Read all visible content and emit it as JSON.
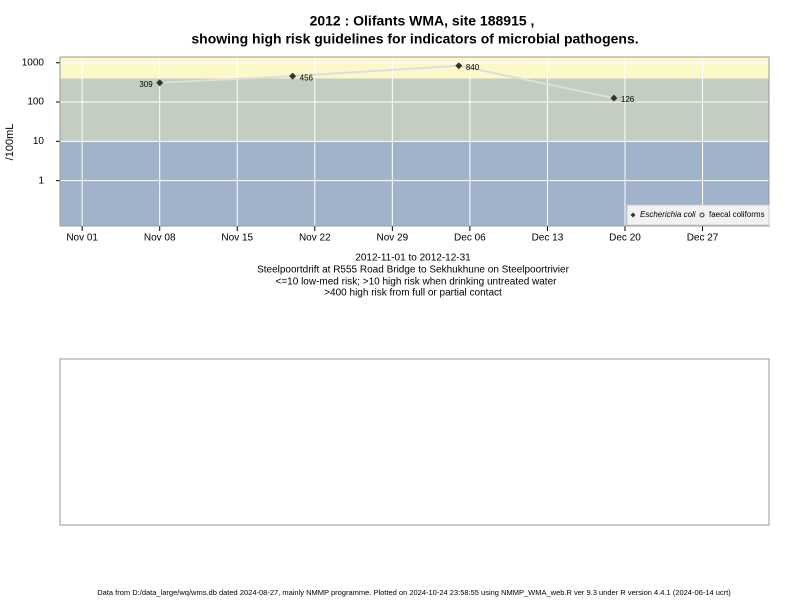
{
  "chart_data": {
    "type": "line",
    "title": "2012 : Olifants WMA, site 188915 ,",
    "title_line2": "showing high risk guidelines for indicators of microbial pathogens.",
    "ylabel": "/100mL",
    "subtitle": [
      "2012-11-01 to 2012-12-31",
      "Steelpoortdrift at R555 Road Bridge to Sekhukhune on Steelpoortrivier",
      "<=10 low-med risk; >10 high risk when drinking untreated water",
      ">400 high risk from full or partial contact"
    ],
    "footer": "Data from D:/data_large/wq/wms.db dated 2024-08-27, mainly NMMP programme. Plotted on 2024-10-24 23:58:55 using NMMP_WMA_web.R ver 9.3 under R version 4.4.1 (2024-06-14 ucrt)",
    "x": [
      "2012-11-08",
      "2012-11-20",
      "2012-12-05",
      "2012-12-19"
    ],
    "series": [
      {
        "name": "Escherichia coli",
        "color": "#dddddd",
        "marker_color": "#333333",
        "values": [
          309,
          456,
          840,
          126
        ]
      },
      {
        "name": "faecal coliforms",
        "color": "#dddddd",
        "marker_color": "#333333",
        "values": [
          null,
          null,
          null,
          null
        ]
      }
    ],
    "xlim": [
      "2012-10-30",
      "2013-01-02"
    ],
    "xticks": [
      {
        "value": "2012-11-01",
        "label": "Nov 01"
      },
      {
        "value": "2012-11-08",
        "label": "Nov 08"
      },
      {
        "value": "2012-11-15",
        "label": "Nov 15"
      },
      {
        "value": "2012-11-22",
        "label": "Nov 22"
      },
      {
        "value": "2012-11-29",
        "label": "Nov 29"
      },
      {
        "value": "2012-12-06",
        "label": "Dec 06"
      },
      {
        "value": "2012-12-13",
        "label": "Dec 13"
      },
      {
        "value": "2012-12-20",
        "label": "Dec 20"
      },
      {
        "value": "2012-12-27",
        "label": "Dec 27"
      }
    ],
    "ylim": [
      0.07,
      1400
    ],
    "yticks": [
      1,
      10,
      100,
      1000
    ],
    "log_y": true,
    "grid": true,
    "thresholds": [
      10,
      400
    ],
    "band_colors": [
      "#a1b3cb",
      "#c3cdc0",
      "#fdf8c9"
    ],
    "legend": "bottom-right"
  }
}
